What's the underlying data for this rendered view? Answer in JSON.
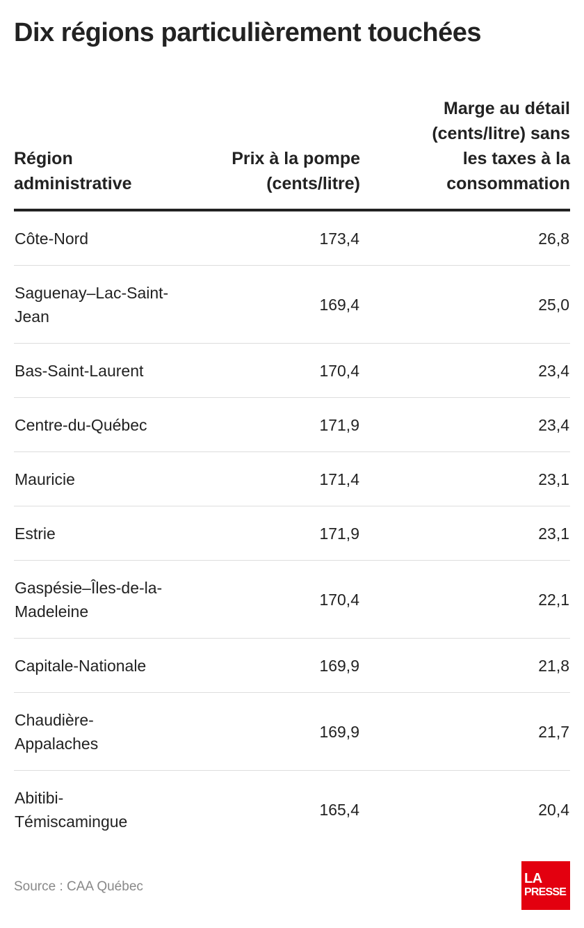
{
  "title": "Dix régions particulièrement touchées",
  "chart_data": {
    "type": "table",
    "title": "Dix régions particulièrement touchées",
    "columns": [
      [
        "Région",
        "administrative"
      ],
      [
        "Prix à la pompe",
        "(cents/litre)"
      ],
      [
        "Marge au détail",
        "(cents/litre) sans",
        "les taxes à la",
        "consommation"
      ]
    ],
    "rows": [
      {
        "region": [
          "Côte-Nord"
        ],
        "price": "173,4",
        "margin": "26,8"
      },
      {
        "region": [
          "Saguenay–Lac-Saint-",
          "Jean"
        ],
        "price": "169,4",
        "margin": "25,0"
      },
      {
        "region": [
          "Bas-Saint-Laurent"
        ],
        "price": "170,4",
        "margin": "23,4"
      },
      {
        "region": [
          "Centre-du-Québec"
        ],
        "price": "171,9",
        "margin": "23,4"
      },
      {
        "region": [
          "Mauricie"
        ],
        "price": "171,4",
        "margin": "23,1"
      },
      {
        "region": [
          "Estrie"
        ],
        "price": "171,9",
        "margin": "23,1"
      },
      {
        "region": [
          "Gaspésie–Îles-de-la-",
          "Madeleine"
        ],
        "price": "170,4",
        "margin": "22,1"
      },
      {
        "region": [
          "Capitale-Nationale"
        ],
        "price": "169,9",
        "margin": "21,8"
      },
      {
        "region": [
          "Chaudière-",
          "Appalaches"
        ],
        "price": "169,9",
        "margin": "21,7"
      },
      {
        "region": [
          "Abitibi-",
          "Témiscamingue"
        ],
        "price": "165,4",
        "margin": "20,4"
      }
    ]
  },
  "footer": {
    "source": "Source : CAA Québec",
    "logo_line1": "LA",
    "logo_line2": "PRESSE",
    "logo_color": "#e3000f"
  }
}
